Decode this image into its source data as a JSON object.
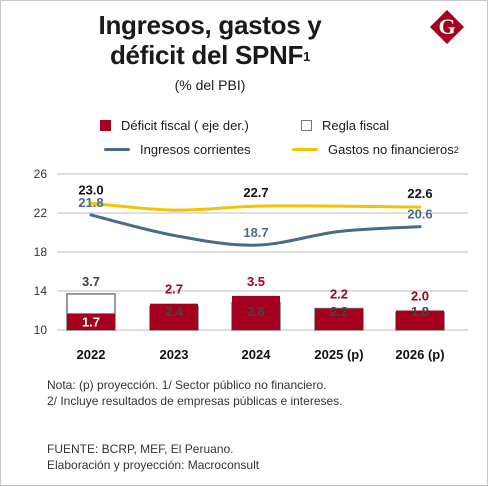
{
  "title_line1": "Ingresos, gastos y",
  "title_line2": "déficit del SPNF",
  "title_sup": "1",
  "subtitle": "(% del PBI)",
  "logo_letter": "G",
  "legend": {
    "deficit": "Déficit fiscal ( eje der.)",
    "regla": "Regla fiscal",
    "ingresos": "Ingresos corrientes",
    "gastos": "Gastos no financieros",
    "gastos_sup": "2"
  },
  "colors": {
    "deficit": "#a6001f",
    "regla_border": "#888888",
    "ingresos": "#4a6a8a",
    "gastos": "#f2c400",
    "logo": "#a6001f"
  },
  "notes": {
    "nota1": "Nota: (p) proyección. 1/ Sector público no financiero.",
    "nota2": "2/ Incluye resultados de empresas públicas e intereses.",
    "fuente": "FUENTE: BCRP, MEF, El Peruano.",
    "elaboracion": "Elaboración y proyección: Macroconsult"
  },
  "chart_data": {
    "type": "bar",
    "categories": [
      "2022",
      "2023",
      "2024",
      "2025 (p)",
      "2026 (p)"
    ],
    "ylim": [
      10,
      26
    ],
    "y_ticks": [
      "10",
      "14",
      "18",
      "22",
      "26"
    ],
    "series": [
      {
        "name": "Déficit fiscal ( eje der.)",
        "type": "bar",
        "values": [
          1.7,
          2.7,
          3.5,
          2.2,
          2.0
        ],
        "labels": [
          "1.7",
          "2.7",
          "3.5",
          "2.2",
          "2.0"
        ]
      },
      {
        "name": "Regla fiscal",
        "type": "bar",
        "values": [
          3.7,
          2.4,
          2.8,
          2.2,
          1.8
        ],
        "labels": [
          "3.7",
          "2.4",
          "2.8",
          "2.2",
          "1.8"
        ]
      },
      {
        "name": "Ingresos corrientes",
        "type": "line",
        "values": [
          21.8,
          19.7,
          18.7,
          20.1,
          20.6
        ],
        "labels": [
          "21.8",
          "",
          "18.7",
          "",
          "20.6"
        ]
      },
      {
        "name": "Gastos no financieros",
        "type": "line",
        "values": [
          23.0,
          22.3,
          22.7,
          22.7,
          22.6
        ],
        "labels": [
          "23.0",
          "",
          "22.7",
          "",
          "22.6"
        ]
      }
    ]
  }
}
